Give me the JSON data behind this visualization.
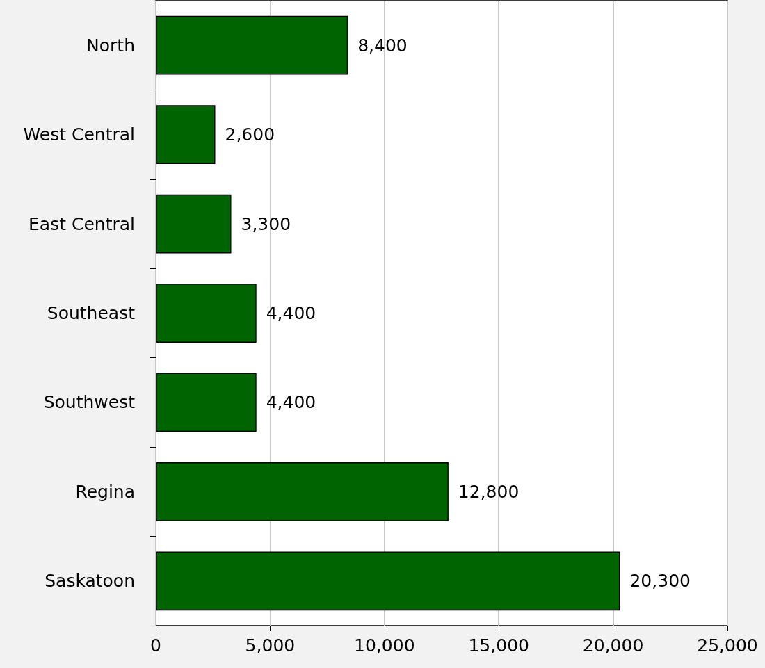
{
  "chart_data": {
    "type": "bar",
    "orientation": "horizontal",
    "categories": [
      "North",
      "West Central",
      "East Central",
      "Southeast",
      "Southwest",
      "Regina",
      "Saskatoon"
    ],
    "values": [
      8400,
      2600,
      3300,
      4400,
      4400,
      12800,
      20300
    ],
    "color": "#006400",
    "xlim": [
      0,
      25000
    ],
    "xticks": [
      0,
      {
        "value": 5000,
        "label": "5,000"
      },
      {
        "value": 10000,
        "label": "10,000"
      },
      {
        "value": 15000,
        "label": "15,000"
      },
      {
        "value": 20000,
        "label": "20,000"
      },
      {
        "value": 25000,
        "label": "25,000"
      }
    ],
    "value_labels": [
      "8,400",
      "2,600",
      "3,300",
      "4,400",
      "4,400",
      "12,800",
      "20,300"
    ],
    "grid": "x"
  }
}
